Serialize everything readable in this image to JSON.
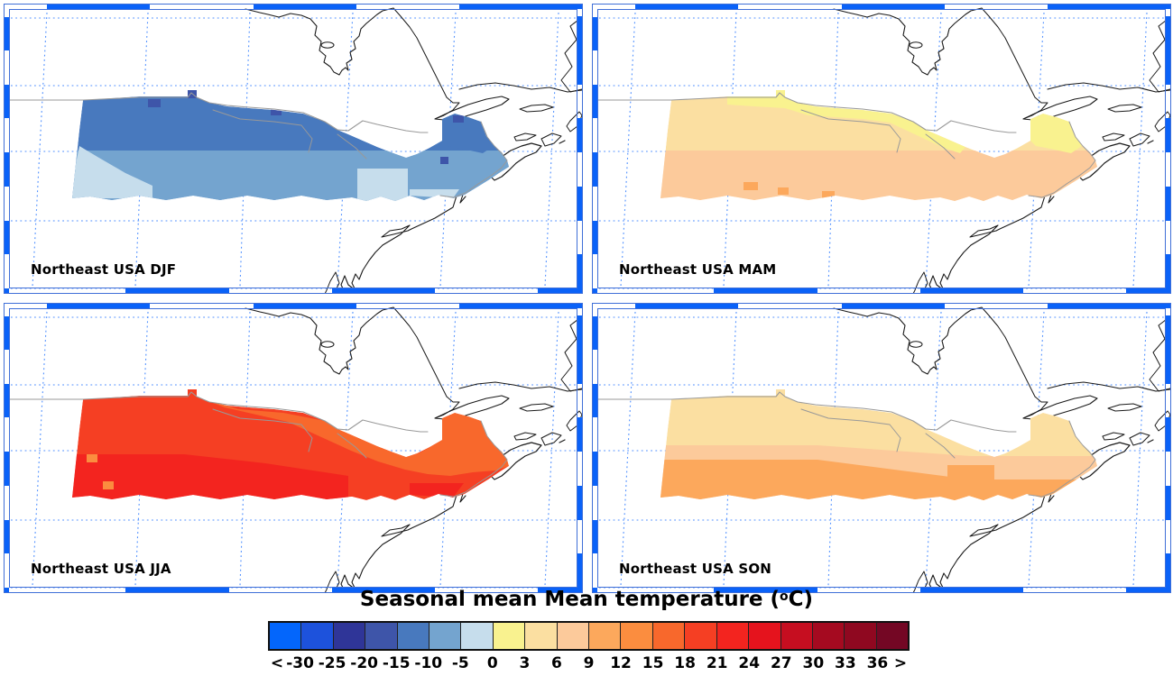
{
  "title": {
    "prefix": "Seasonal mean Mean temperature (",
    "degree": "o",
    "suffix": "C)"
  },
  "panels": [
    {
      "season": "DJF",
      "label": "Northeast USA DJF"
    },
    {
      "season": "MAM",
      "label": "Northeast USA MAM"
    },
    {
      "season": "JJA",
      "label": "Northeast USA JJA"
    },
    {
      "season": "SON",
      "label": "Northeast USA SON"
    }
  ],
  "chart_data": {
    "type": "heatmap",
    "variable": "Mean temperature",
    "units": "°C",
    "statistic": "Seasonal mean",
    "region": "Northeast USA",
    "colorbar": {
      "open_ended": true,
      "boundaries": [
        -30,
        -25,
        -20,
        -15,
        -10,
        -5,
        0,
        3,
        6,
        9,
        12,
        15,
        18,
        21,
        24,
        27,
        30,
        33,
        36
      ],
      "tick_labels": [
        "<",
        "-30",
        "-25",
        "-20",
        "-15",
        "-10",
        "-5",
        "0",
        "3",
        "6",
        "9",
        "12",
        "15",
        "18",
        "21",
        "24",
        "27",
        "30",
        "33",
        "36",
        ">"
      ],
      "colors": [
        "#0366FC",
        "#1D52DC",
        "#2F3598",
        "#3E55A9",
        "#4879BE",
        "#74A4CF",
        "#C6DDEC",
        "#F9F28F",
        "#FBDFA1",
        "#FCCA9B",
        "#FCA85C",
        "#FB8D3F",
        "#F8682C",
        "#F53F23",
        "#F3241F",
        "#E5131D",
        "#C60E20",
        "#A50A20",
        "#8F0820",
        "#740724"
      ]
    },
    "panels": [
      {
        "season": "DJF",
        "zones": [
          {
            "geom": "base",
            "range_c": "-15 to -10",
            "color": "#4879BE"
          },
          {
            "geom": "band_south",
            "range_c": "-10 to -5",
            "color": "#74A4CF"
          },
          {
            "geom": "patch_se",
            "range_c": "-5 to 0",
            "color": "#C6DDEC"
          },
          {
            "geom": "wedge_sw",
            "range_c": "-5 to 0",
            "color": "#C6DDEC"
          },
          {
            "geom": "patch_e_fringe",
            "range_c": "-5 to 0",
            "color": "#C6DDEC"
          },
          {
            "geom": "maine",
            "range_c": "-15 to -10",
            "color": "#4879BE"
          },
          {
            "geom": "cells_dark",
            "range_c": "-20 to -15",
            "color": "#3E55A9"
          }
        ]
      },
      {
        "season": "MAM",
        "zones": [
          {
            "geom": "base",
            "range_c": "3 to 6",
            "color": "#FBDFA1"
          },
          {
            "geom": "band_south",
            "range_c": "6 to 9",
            "color": "#FCCA9B"
          },
          {
            "geom": "strip_top",
            "range_c": "0 to 3",
            "color": "#F9F28F"
          },
          {
            "geom": "maine",
            "range_c": "0 to 3",
            "color": "#F9F28F"
          },
          {
            "geom": "cells_mam_orange",
            "range_c": "9 to 12",
            "color": "#FCA85C"
          }
        ]
      },
      {
        "season": "JJA",
        "zones": [
          {
            "geom": "base",
            "range_c": "18 to 21",
            "color": "#F53F23"
          },
          {
            "geom": "band_jja",
            "range_c": "21 to 24",
            "color": "#F3241F"
          },
          {
            "geom": "tri_ne",
            "range_c": "15 to 18",
            "color": "#F8682C"
          },
          {
            "geom": "patch_e_south",
            "range_c": "21 to 24",
            "color": "#F3241F"
          },
          {
            "geom": "cells_jja_light",
            "range_c": "12 to 15",
            "color": "#FB8D3F"
          }
        ]
      },
      {
        "season": "SON",
        "zones": [
          {
            "geom": "base",
            "range_c": "3 to 6",
            "color": "#FBDFA1"
          },
          {
            "geom": "band_mid",
            "range_c": "6 to 9",
            "color": "#FCCA9B"
          },
          {
            "geom": "band_son_low",
            "range_c": "9 to 12",
            "color": "#FCA85C"
          },
          {
            "geom": "patch_e_west",
            "range_c": "9 to 12",
            "color": "#FCA85C"
          },
          {
            "geom": "patch_son_light",
            "range_c": "3 to 6",
            "color": "#FBDFA1"
          },
          {
            "geom": "maine",
            "range_c": "3 to 6",
            "color": "#FBDFA1"
          }
        ]
      }
    ]
  },
  "style_colors": {
    "frame_blue": "#0A62F8",
    "frame_line": "#3F6FD8",
    "graticule": "#2E7BFF",
    "coast_black": "#1a1a1a",
    "border_gray": "#999999"
  }
}
